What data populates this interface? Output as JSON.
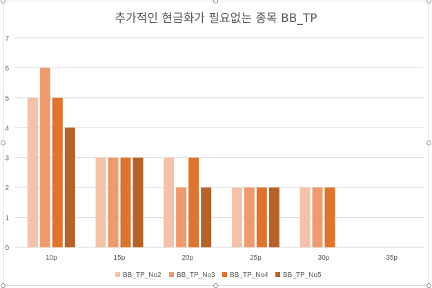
{
  "chart_data": {
    "type": "bar",
    "title": "추가적인 현금화가 필요없는 종목 BB_TP",
    "categories": [
      "10p",
      "15p",
      "20p",
      "25p",
      "30p",
      "35p"
    ],
    "ylim": [
      0,
      7
    ],
    "yticks": [
      0,
      1,
      2,
      3,
      4,
      5,
      6,
      7
    ],
    "grid": true,
    "legend_position": "bottom",
    "series": [
      {
        "name": "BB_TP_No2",
        "color": "#f4c2ab",
        "values": [
          5,
          3,
          3,
          2,
          2,
          null
        ]
      },
      {
        "name": "BB_TP_No3",
        "color": "#ee9b6e",
        "values": [
          6,
          3,
          2,
          2,
          2,
          null
        ]
      },
      {
        "name": "BB_TP_No4",
        "color": "#dd7531",
        "values": [
          5,
          3,
          3,
          2,
          2,
          null
        ]
      },
      {
        "name": "BB_TP_No5",
        "color": "#b5632b",
        "values": [
          4,
          3,
          2,
          2,
          null,
          null
        ]
      }
    ]
  }
}
